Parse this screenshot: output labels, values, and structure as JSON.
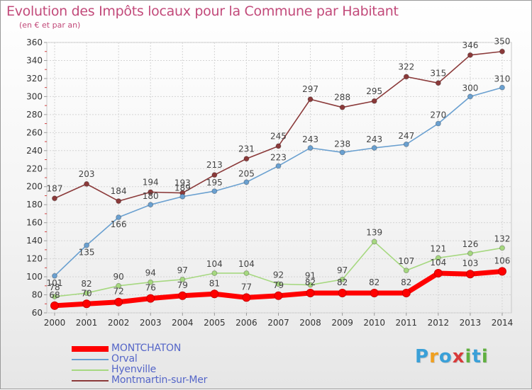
{
  "page": {
    "title": "Evolution des Impôts locaux pour la Commune par Habitant",
    "subtitle": "(en € et par an)",
    "brand": {
      "letters": [
        "P",
        "r",
        "o",
        "x",
        "i",
        "t",
        "i"
      ],
      "colors": [
        "#3aa0d8",
        "#f0a020",
        "#3aa0d8",
        "#d83a3a",
        "#60b040",
        "#3aa0d8",
        "#60b040"
      ]
    }
  },
  "chart_data": {
    "type": "line",
    "x": [
      2000,
      2001,
      2002,
      2003,
      2004,
      2005,
      2006,
      2007,
      2008,
      2009,
      2010,
      2011,
      2012,
      2013,
      2014
    ],
    "ylim": [
      60,
      360
    ],
    "yticks": [
      60,
      80,
      100,
      120,
      140,
      160,
      180,
      200,
      220,
      240,
      260,
      280,
      300,
      320,
      340,
      360
    ],
    "grid": true,
    "legend_position": "bottom-left",
    "series": [
      {
        "name": "MONTCHATON",
        "color": "#ff0000",
        "values": [
          68,
          70,
          72,
          76,
          79,
          81,
          77,
          79,
          82,
          82,
          82,
          82,
          104,
          103,
          106
        ]
      },
      {
        "name": "Orval",
        "color": "#6aa0d0",
        "values": [
          101,
          135,
          166,
          180,
          189,
          195,
          205,
          223,
          243,
          238,
          243,
          247,
          270,
          300,
          310
        ]
      },
      {
        "name": "Hyenville",
        "color": "#a6d880",
        "values": [
          78,
          82,
          90,
          94,
          97,
          104,
          104,
          92,
          91,
          97,
          139,
          107,
          121,
          126,
          132
        ]
      },
      {
        "name": "Montmartin-sur-Mer",
        "color": "#8b3a3a",
        "values": [
          187,
          203,
          184,
          194,
          193,
          213,
          231,
          245,
          297,
          288,
          295,
          322,
          315,
          346,
          350
        ]
      }
    ]
  }
}
